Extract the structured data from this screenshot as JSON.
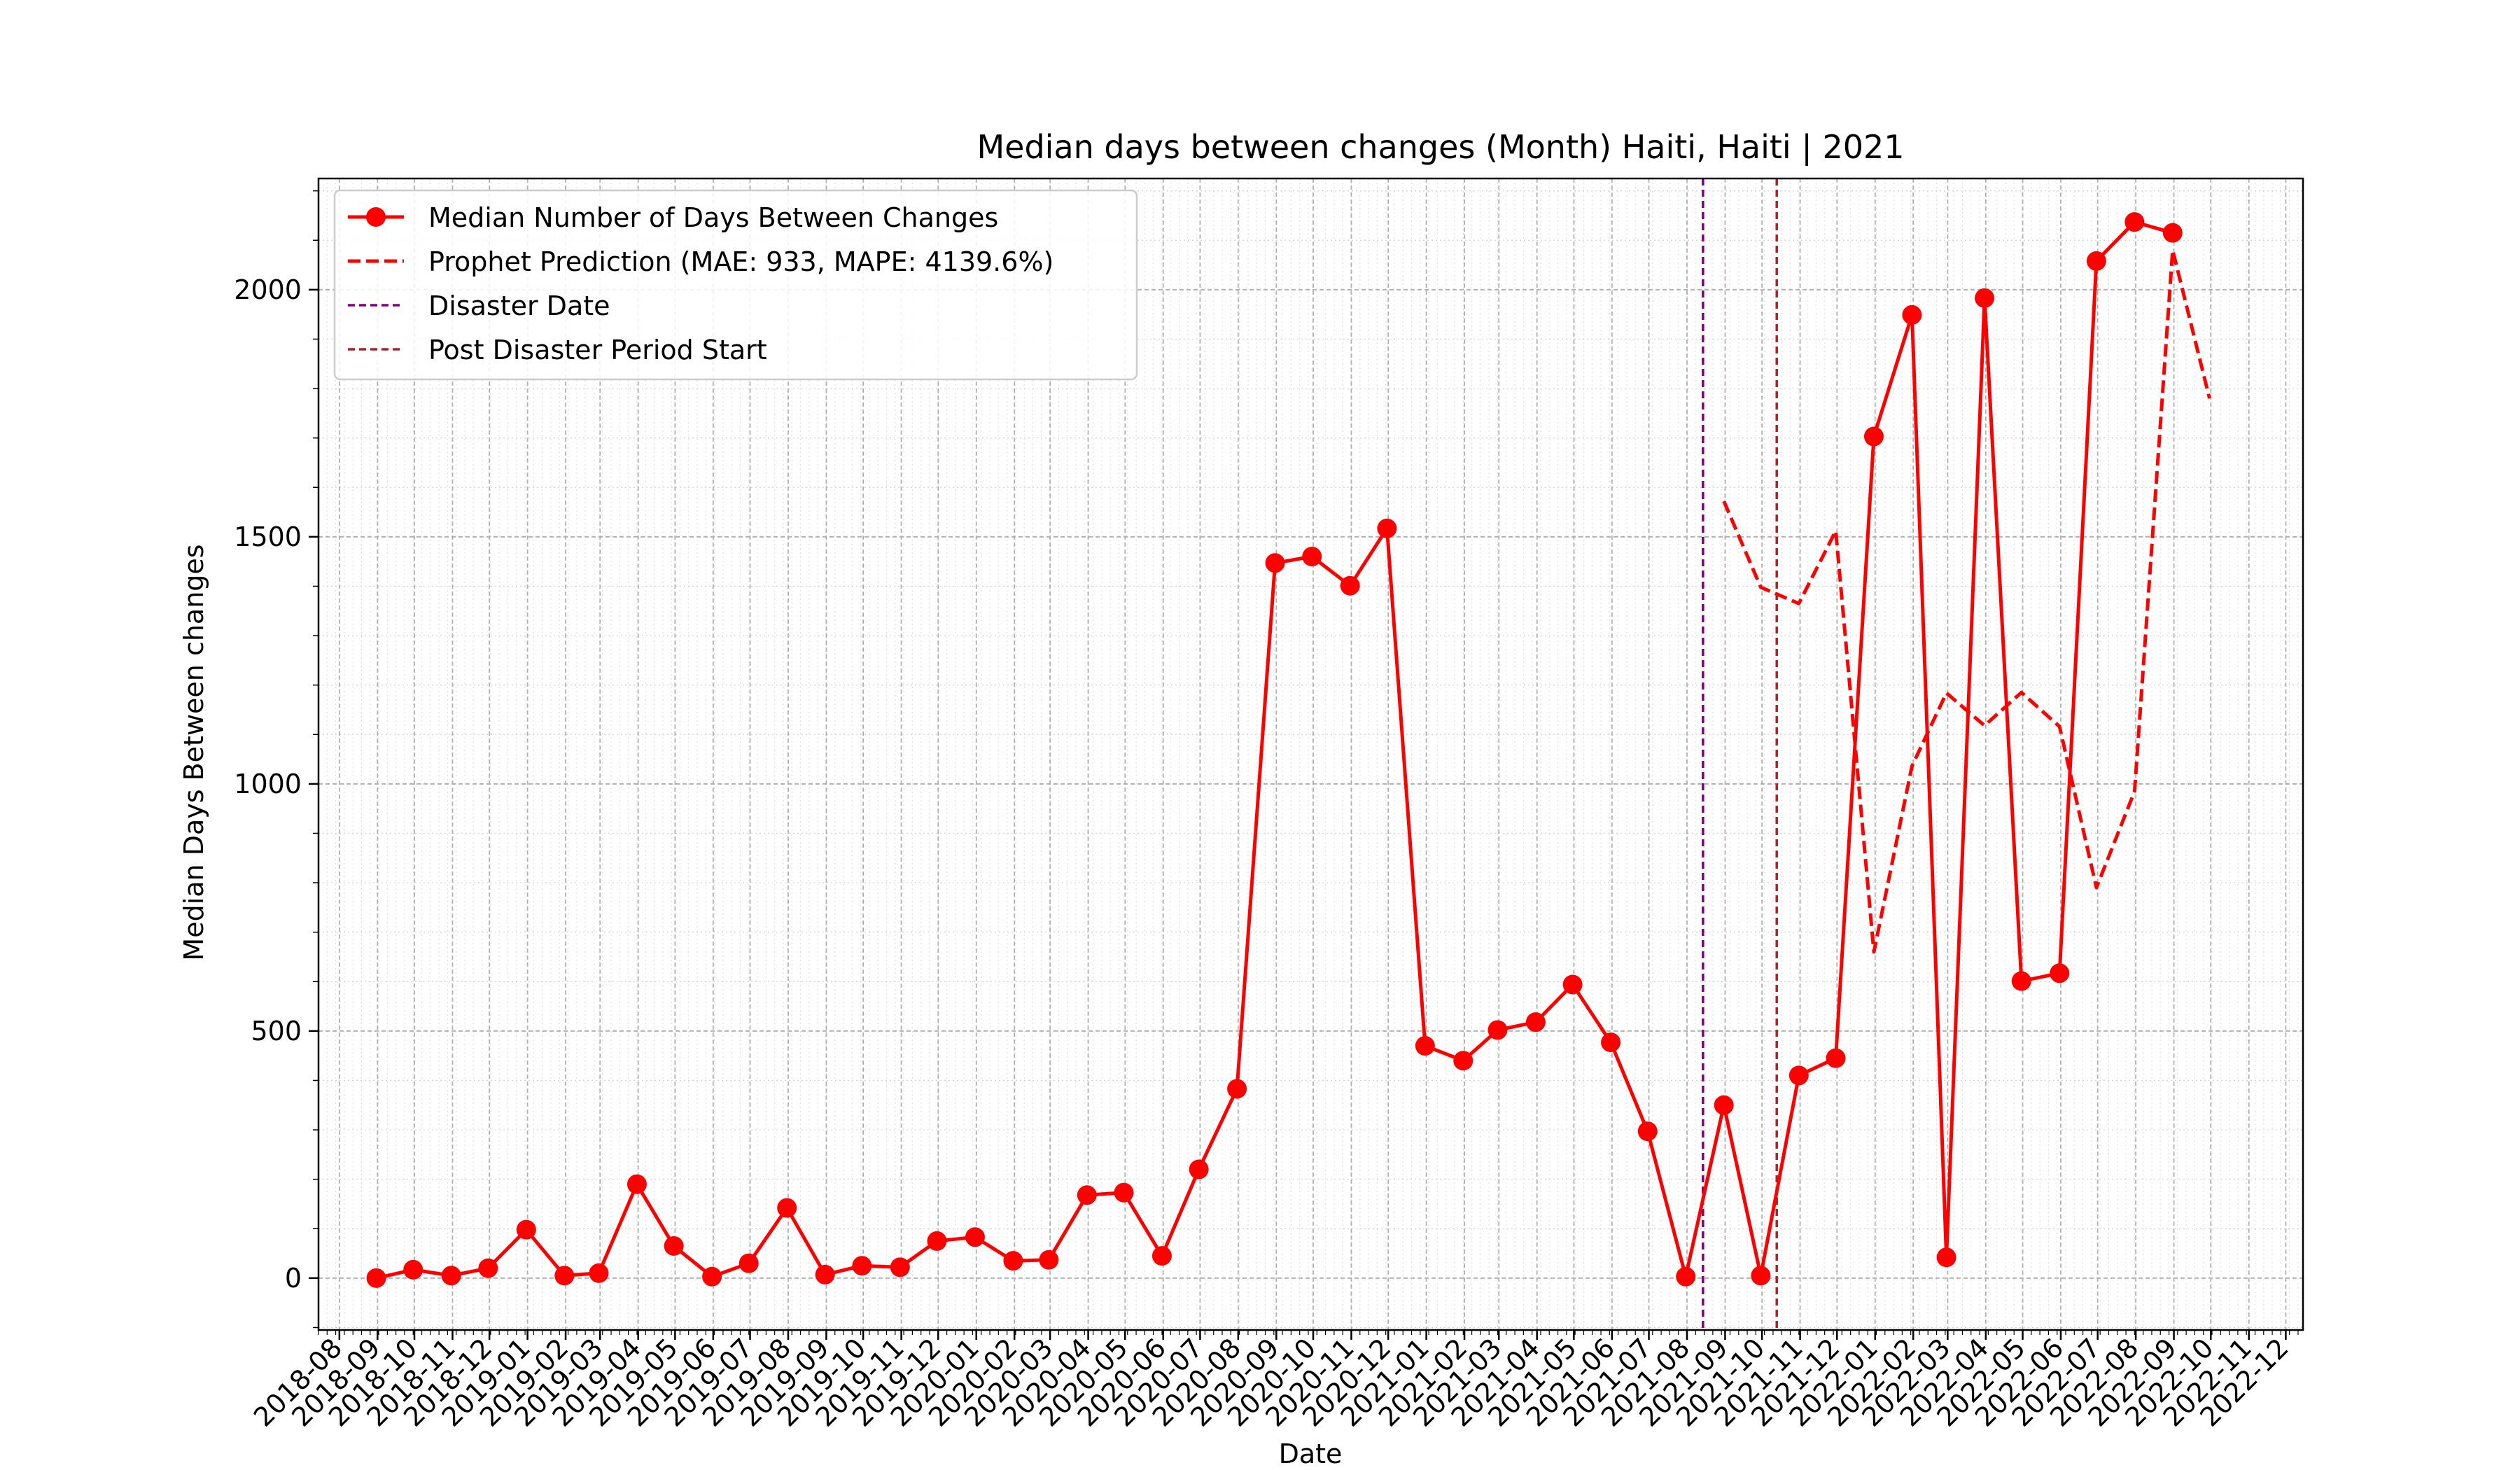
{
  "chart_data": {
    "type": "line",
    "title": "Median days between changes (Month) Haiti, Haiti | 2021",
    "xlabel": "Date",
    "ylabel": "Median Days Between changes",
    "xlim": [
      "2018-07-15",
      "2022-12-15"
    ],
    "ylim": [
      -105,
      2225
    ],
    "yticks": [
      0,
      500,
      1000,
      1500,
      2000
    ],
    "xticks": [
      "2018-08",
      "2018-09",
      "2018-10",
      "2018-11",
      "2018-12",
      "2019-01",
      "2019-02",
      "2019-03",
      "2019-04",
      "2019-05",
      "2019-06",
      "2019-07",
      "2019-08",
      "2019-09",
      "2019-10",
      "2019-11",
      "2019-12",
      "2020-01",
      "2020-02",
      "2020-03",
      "2020-04",
      "2020-05",
      "2020-06",
      "2020-07",
      "2020-08",
      "2020-09",
      "2020-10",
      "2020-11",
      "2020-12",
      "2021-01",
      "2021-02",
      "2021-03",
      "2021-04",
      "2021-05",
      "2021-06",
      "2021-07",
      "2021-08",
      "2021-09",
      "2021-10",
      "2021-11",
      "2021-12",
      "2022-01",
      "2022-02",
      "2022-03",
      "2022-04",
      "2022-05",
      "2022-06",
      "2022-07",
      "2022-08",
      "2022-09",
      "2022-10",
      "2022-11",
      "2022-12"
    ],
    "grid": true,
    "legend_position": "top-left",
    "colors": {
      "observed": "#ff0000",
      "prediction": "#ff0000",
      "disaster": "#800080",
      "post_disaster": "#b22222",
      "grid": "#b0b0b0"
    },
    "series": [
      {
        "name": "Median Number of Days Between Changes",
        "style": "solid-markers",
        "points": [
          [
            "2018-08-31",
            0
          ],
          [
            "2018-09-30",
            17
          ],
          [
            "2018-10-31",
            5
          ],
          [
            "2018-11-30",
            20
          ],
          [
            "2018-12-31",
            98
          ],
          [
            "2019-01-31",
            5
          ],
          [
            "2019-02-28",
            10
          ],
          [
            "2019-03-31",
            190
          ],
          [
            "2019-04-30",
            65
          ],
          [
            "2019-05-31",
            3
          ],
          [
            "2019-06-30",
            30
          ],
          [
            "2019-07-31",
            142
          ],
          [
            "2019-08-31",
            7
          ],
          [
            "2019-09-30",
            25
          ],
          [
            "2019-10-31",
            22
          ],
          [
            "2019-11-30",
            75
          ],
          [
            "2019-12-31",
            83
          ],
          [
            "2020-01-31",
            35
          ],
          [
            "2020-02-29",
            37
          ],
          [
            "2020-03-31",
            168
          ],
          [
            "2020-04-30",
            173
          ],
          [
            "2020-05-31",
            45
          ],
          [
            "2020-06-30",
            220
          ],
          [
            "2020-07-31",
            383
          ],
          [
            "2020-08-31",
            1447
          ],
          [
            "2020-09-30",
            1460
          ],
          [
            "2020-10-31",
            1401
          ],
          [
            "2020-11-30",
            1517
          ],
          [
            "2020-12-31",
            470
          ],
          [
            "2021-01-31",
            440
          ],
          [
            "2021-02-28",
            502
          ],
          [
            "2021-03-31",
            518
          ],
          [
            "2021-04-30",
            594
          ],
          [
            "2021-05-31",
            477
          ],
          [
            "2021-06-30",
            297
          ],
          [
            "2021-07-31",
            3
          ],
          [
            "2021-08-31",
            350
          ],
          [
            "2021-09-30",
            5
          ],
          [
            "2021-10-31",
            410
          ],
          [
            "2021-11-30",
            445
          ],
          [
            "2021-12-31",
            1703
          ],
          [
            "2022-01-31",
            1949
          ],
          [
            "2022-02-28",
            42
          ],
          [
            "2022-03-31",
            1983
          ],
          [
            "2022-04-30",
            601
          ],
          [
            "2022-05-31",
            617
          ],
          [
            "2022-06-30",
            2058
          ],
          [
            "2022-07-31",
            2137
          ],
          [
            "2022-08-31",
            2115
          ]
        ]
      },
      {
        "name": "Prophet Prediction (MAE: 933, MAPE: 4139.6%)",
        "style": "dashed",
        "points": [
          [
            "2021-08-31",
            1572
          ],
          [
            "2021-09-30",
            1398
          ],
          [
            "2021-10-31",
            1365
          ],
          [
            "2021-11-30",
            1512
          ],
          [
            "2021-12-31",
            660
          ],
          [
            "2022-01-31",
            1036
          ],
          [
            "2022-02-28",
            1184
          ],
          [
            "2022-03-31",
            1118
          ],
          [
            "2022-04-30",
            1185
          ],
          [
            "2022-05-31",
            1116
          ],
          [
            "2022-06-30",
            790
          ],
          [
            "2022-07-31",
            985
          ],
          [
            "2022-08-31",
            2080
          ],
          [
            "2022-09-30",
            1780
          ]
        ]
      }
    ],
    "vlines": [
      {
        "name": "Disaster Date",
        "x": "2021-08-14",
        "color_key": "disaster",
        "style": "dashed"
      },
      {
        "name": "Post Disaster Period Start",
        "x": "2021-10-13",
        "color_key": "post_disaster",
        "style": "dashed"
      }
    ]
  }
}
